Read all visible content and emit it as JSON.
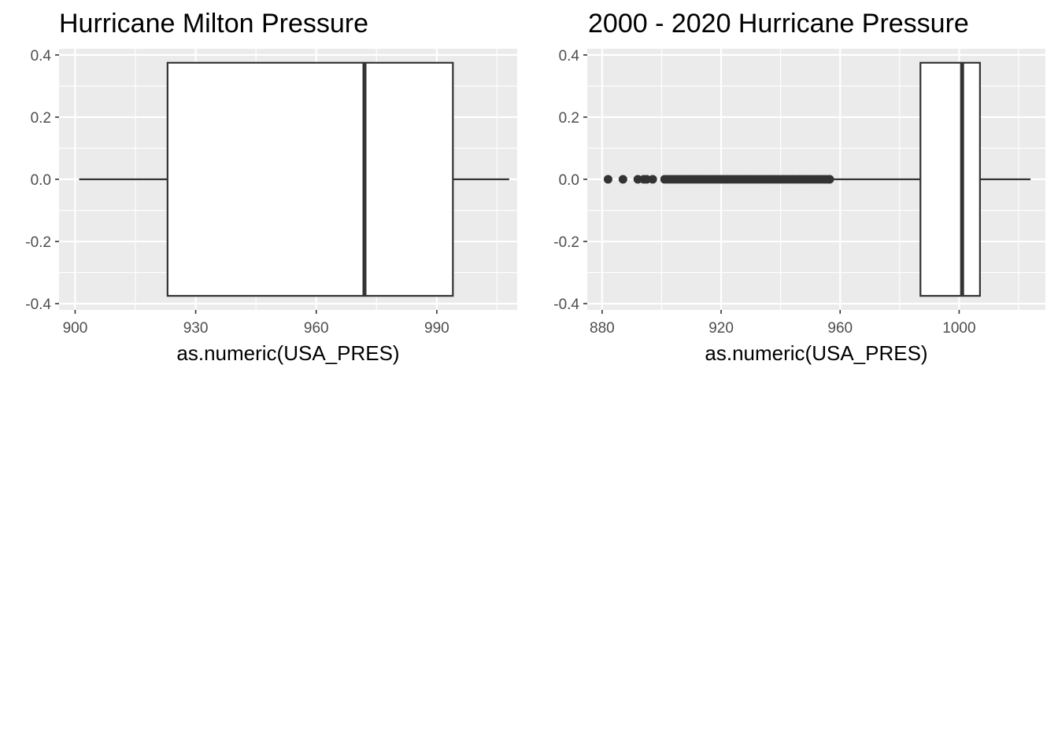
{
  "chart_data": [
    {
      "type": "boxplot",
      "title": "Hurricane Milton Pressure",
      "xlabel": "as.numeric(USA_PRES)",
      "ylabel": "",
      "xlim": [
        896,
        1010
      ],
      "ylim": [
        -0.4,
        0.4
      ],
      "x_ticks": [
        900,
        930,
        960,
        990
      ],
      "x_tick_labels": [
        "900",
        "930",
        "960",
        "990"
      ],
      "y_ticks": [
        0.4,
        0.2,
        0.0,
        -0.2,
        -0.4
      ],
      "y_tick_labels": [
        "0.4",
        "0.2",
        "0.0",
        "-0.2",
        "-0.4"
      ],
      "box": {
        "whisker_low": 901,
        "q1": 923,
        "median": 972,
        "q3": 994,
        "whisker_high": 1008,
        "y_low": -0.375,
        "y_high": 0.375
      },
      "outliers": [],
      "grid": true
    },
    {
      "type": "boxplot",
      "title": "2000 - 2020 Hurricane Pressure",
      "xlabel": "as.numeric(USA_PRES)",
      "ylabel": "",
      "xlim": [
        875,
        1029
      ],
      "ylim": [
        -0.4,
        0.4
      ],
      "x_ticks": [
        880,
        920,
        960,
        1000
      ],
      "x_tick_labels": [
        "880",
        "920",
        "960",
        "1000"
      ],
      "y_ticks": [
        0.4,
        0.2,
        0.0,
        -0.2,
        -0.4
      ],
      "y_tick_labels": [
        "0.4",
        "0.2",
        "0.0",
        "-0.2",
        "-0.4"
      ],
      "box": {
        "whisker_low": 957,
        "q1": 987,
        "median": 1001,
        "q3": 1007,
        "whisker_high": 1024,
        "y_low": -0.375,
        "y_high": 0.375
      },
      "outliers": [
        882,
        887,
        892,
        894,
        895,
        897,
        901,
        902,
        903,
        904,
        905,
        906,
        907,
        908,
        909,
        910,
        911,
        912,
        913,
        914,
        915,
        916,
        917,
        918,
        919,
        920,
        921,
        922,
        923,
        924,
        925,
        926,
        927,
        928,
        929,
        930,
        931,
        932,
        933,
        934,
        935,
        936,
        937,
        938,
        939,
        940,
        941,
        942,
        943,
        944,
        945,
        946,
        947,
        948,
        949,
        950,
        951,
        952,
        953,
        954,
        955,
        956,
        956.5
      ],
      "grid": true
    }
  ],
  "colors": {
    "panel_background": "#ebebeb",
    "grid_major": "#ffffff",
    "box_fill": "#ffffff",
    "box_line": "#333333",
    "tick_text": "#4d4d4d"
  }
}
